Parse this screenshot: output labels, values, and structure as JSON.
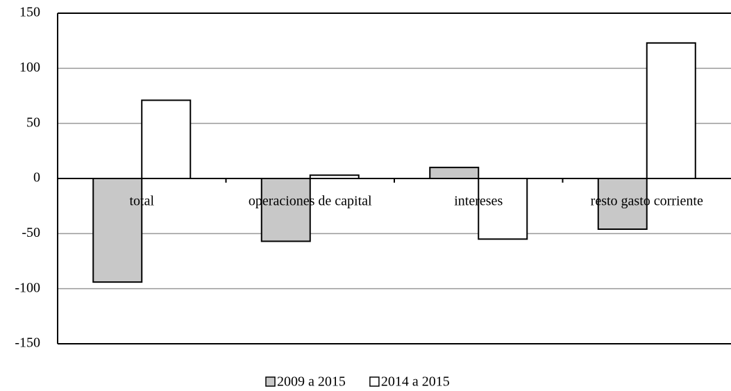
{
  "chart_data": {
    "type": "bar",
    "categories": [
      "total",
      "operaciones de capital",
      "intereses",
      "resto gasto corriente"
    ],
    "series": [
      {
        "name": "2009 a 2015",
        "color": "#c8c8c8",
        "values": [
          -94,
          -57,
          10,
          -46
        ]
      },
      {
        "name": "2014 a 2015",
        "color": "#ffffff",
        "values": [
          71,
          3,
          -55,
          123
        ]
      }
    ],
    "ylim": [
      -150,
      150
    ],
    "yticks": [
      -150,
      -100,
      -50,
      0,
      50,
      100,
      150
    ],
    "grid": true,
    "legend": "bottom"
  }
}
